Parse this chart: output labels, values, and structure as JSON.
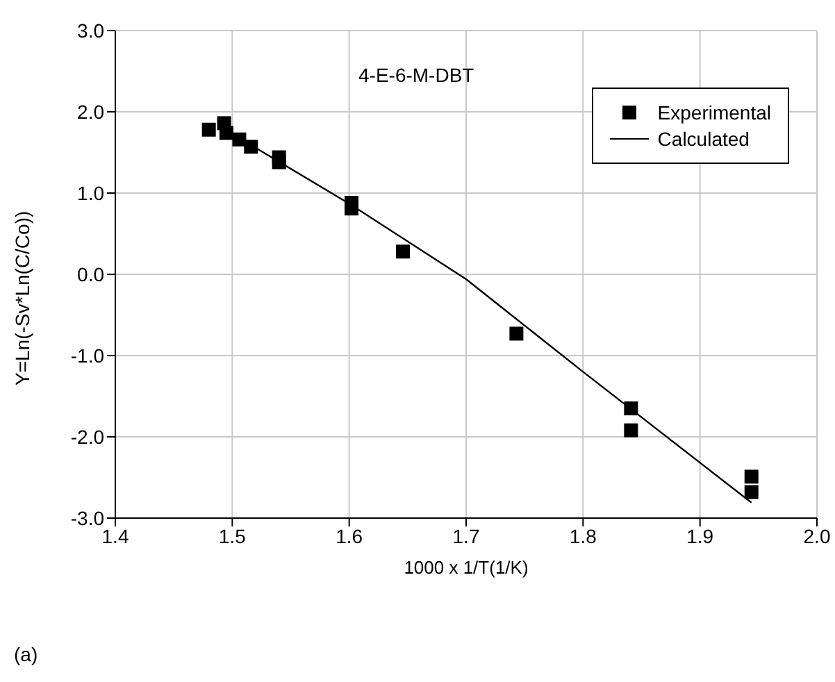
{
  "chart_data": {
    "type": "scatter",
    "xlabel": "1000 x 1/T(1/K)",
    "ylabel": "Y=Ln(-Sv*Ln(C/Co))",
    "annotations": [
      "4-E-6-M-DBT",
      "(a)"
    ],
    "xlim": [
      1.4,
      2.0
    ],
    "xticks": [
      {
        "value": 1.4,
        "label": "1.4"
      },
      {
        "value": 1.5,
        "label": "1.5"
      },
      {
        "value": 1.6,
        "label": "1.6"
      },
      {
        "value": 1.7,
        "label": "1.7"
      },
      {
        "value": 1.8,
        "label": "1.8"
      },
      {
        "value": 1.9,
        "label": "1.9"
      },
      {
        "value": 2.0,
        "label": "2.0"
      }
    ],
    "ylim": [
      -3.0,
      3.0
    ],
    "yticks": [
      {
        "value": -3,
        "label": "-3.0"
      },
      {
        "value": -2,
        "label": "-2.0"
      },
      {
        "value": -1,
        "label": "-1.0"
      },
      {
        "value": 0,
        "label": "0.0"
      },
      {
        "value": 1,
        "label": "1.0"
      },
      {
        "value": 2,
        "label": "2.0"
      },
      {
        "value": 3,
        "label": "3.0"
      }
    ],
    "grid": true,
    "legend": "top right",
    "series": [
      {
        "name": "Experimental",
        "marker": "square",
        "color": "#000000",
        "x": [
          1.48,
          1.493,
          1.495,
          1.506,
          1.516,
          1.54,
          1.54,
          1.602,
          1.602,
          1.646,
          1.743,
          1.841,
          1.841,
          1.944,
          1.944
        ],
        "values": [
          1.78,
          1.86,
          1.74,
          1.66,
          1.57,
          1.44,
          1.38,
          0.88,
          0.81,
          0.28,
          -0.73,
          -1.65,
          -1.92,
          -2.49,
          -2.68
        ]
      },
      {
        "name": "Calculated",
        "type": "line",
        "marker": "none",
        "line_style": "solid",
        "color": "#000000",
        "x": [
          1.508,
          1.6,
          1.7,
          1.8,
          1.944
        ],
        "values": [
          1.66,
          0.87,
          -0.06,
          -1.2,
          -2.81
        ]
      }
    ]
  }
}
